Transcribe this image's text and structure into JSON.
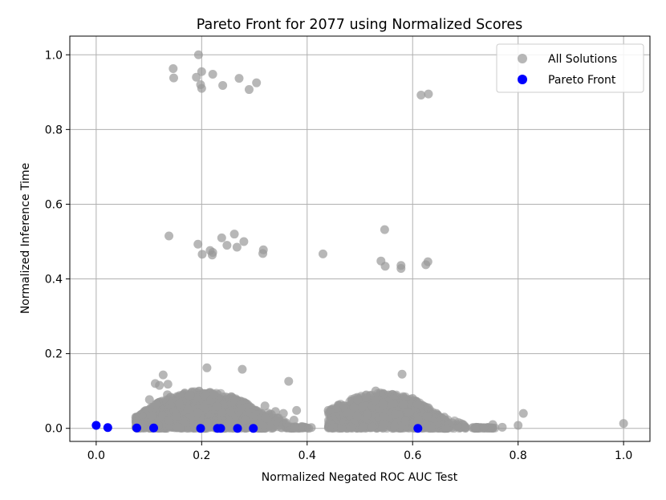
{
  "chart_data": {
    "type": "scatter",
    "title": "Pareto Front for 2077 using Normalized Scores",
    "xlabel": "Normalized Negated ROC AUC Test",
    "ylabel": "Normalized Inference Time",
    "xlim": [
      -0.05,
      1.05
    ],
    "ylim": [
      -0.035,
      1.05
    ],
    "xticks": [
      0.0,
      0.2,
      0.4,
      0.6,
      0.8,
      1.0
    ],
    "xtick_labels": [
      "0.0",
      "0.2",
      "0.4",
      "0.6",
      "0.8",
      "1.0"
    ],
    "yticks": [
      0.0,
      0.2,
      0.4,
      0.6,
      0.8,
      1.0
    ],
    "ytick_labels": [
      "0.0",
      "0.2",
      "0.4",
      "0.6",
      "0.8",
      "1.0"
    ],
    "grid": true,
    "legend_position": "top-right",
    "series": [
      {
        "name": "All Solutions",
        "color": "#999999",
        "points": [
          [
            0.194,
            1.0
          ],
          [
            0.146,
            0.963
          ],
          [
            0.147,
            0.938
          ],
          [
            0.19,
            0.94
          ],
          [
            0.2,
            0.955
          ],
          [
            0.221,
            0.948
          ],
          [
            0.198,
            0.92
          ],
          [
            0.2,
            0.91
          ],
          [
            0.24,
            0.918
          ],
          [
            0.271,
            0.937
          ],
          [
            0.29,
            0.907
          ],
          [
            0.304,
            0.925
          ],
          [
            0.616,
            0.892
          ],
          [
            0.63,
            0.895
          ],
          [
            0.138,
            0.515
          ],
          [
            0.193,
            0.493
          ],
          [
            0.238,
            0.51
          ],
          [
            0.262,
            0.52
          ],
          [
            0.201,
            0.466
          ],
          [
            0.216,
            0.476
          ],
          [
            0.221,
            0.471
          ],
          [
            0.22,
            0.464
          ],
          [
            0.248,
            0.49
          ],
          [
            0.267,
            0.485
          ],
          [
            0.28,
            0.5
          ],
          [
            0.317,
            0.478
          ],
          [
            0.316,
            0.468
          ],
          [
            0.43,
            0.467
          ],
          [
            0.547,
            0.532
          ],
          [
            0.54,
            0.448
          ],
          [
            0.548,
            0.434
          ],
          [
            0.578,
            0.436
          ],
          [
            0.578,
            0.428
          ],
          [
            0.625,
            0.438
          ],
          [
            0.629,
            0.446
          ],
          [
            0.127,
            0.143
          ],
          [
            0.21,
            0.162
          ],
          [
            0.277,
            0.158
          ],
          [
            0.365,
            0.126
          ],
          [
            0.58,
            0.145
          ],
          [
            0.112,
            0.12
          ],
          [
            0.12,
            0.115
          ],
          [
            0.136,
            0.118
          ],
          [
            0.101,
            0.077
          ],
          [
            0.135,
            0.09
          ],
          [
            0.32,
            0.06
          ],
          [
            0.34,
            0.045
          ],
          [
            0.355,
            0.04
          ],
          [
            0.38,
            0.048
          ],
          [
            0.075,
            0.03
          ],
          [
            0.078,
            0.018
          ],
          [
            0.09,
            0.01
          ],
          [
            0.33,
            0.02
          ],
          [
            0.36,
            0.015
          ],
          [
            0.375,
            0.022
          ],
          [
            0.39,
            0.005
          ],
          [
            0.403,
            0.0
          ],
          [
            0.408,
            0.002
          ],
          [
            0.44,
            0.048
          ],
          [
            0.445,
            0.01
          ],
          [
            0.455,
            0.03
          ],
          [
            0.47,
            0.018
          ],
          [
            0.53,
            0.1
          ],
          [
            0.545,
            0.092
          ],
          [
            0.566,
            0.087
          ],
          [
            0.6,
            0.08
          ],
          [
            0.63,
            0.055
          ],
          [
            0.645,
            0.04
          ],
          [
            0.66,
            0.03
          ],
          [
            0.675,
            0.015
          ],
          [
            0.685,
            0.005
          ],
          [
            0.7,
            0.003
          ],
          [
            0.72,
            0.003
          ],
          [
            0.735,
            0.002
          ],
          [
            0.752,
            0.01
          ],
          [
            0.77,
            0.003
          ],
          [
            0.8,
            0.008
          ],
          [
            0.81,
            0.04
          ],
          [
            1.0,
            0.013
          ]
        ],
        "clusters": [
          {
            "x_range": [
              0.075,
              0.32
            ],
            "y_peak": 0.1,
            "center_x": 0.2,
            "count": 1700,
            "seed": 7
          },
          {
            "x_range": [
              0.44,
              0.67
            ],
            "y_peak": 0.095,
            "center_x": 0.54,
            "count": 1250,
            "seed": 13
          },
          {
            "x_range": [
              0.28,
              0.4
            ],
            "y_peak": 0.05,
            "center_x": 0.3,
            "count": 140,
            "seed": 21
          },
          {
            "x_range": [
              0.6,
              0.76
            ],
            "y_peak": 0.035,
            "center_x": 0.62,
            "count": 120,
            "seed": 33
          }
        ]
      },
      {
        "name": "Pareto Front",
        "color": "#0000ff",
        "points": [
          [
            0.0,
            0.008
          ],
          [
            0.022,
            0.002
          ],
          [
            0.077,
            0.001
          ],
          [
            0.109,
            0.001
          ],
          [
            0.198,
            0.0
          ],
          [
            0.23,
            0.0
          ],
          [
            0.236,
            0.0
          ],
          [
            0.268,
            0.0
          ],
          [
            0.298,
            0.0
          ],
          [
            0.61,
            0.0
          ]
        ]
      }
    ]
  }
}
